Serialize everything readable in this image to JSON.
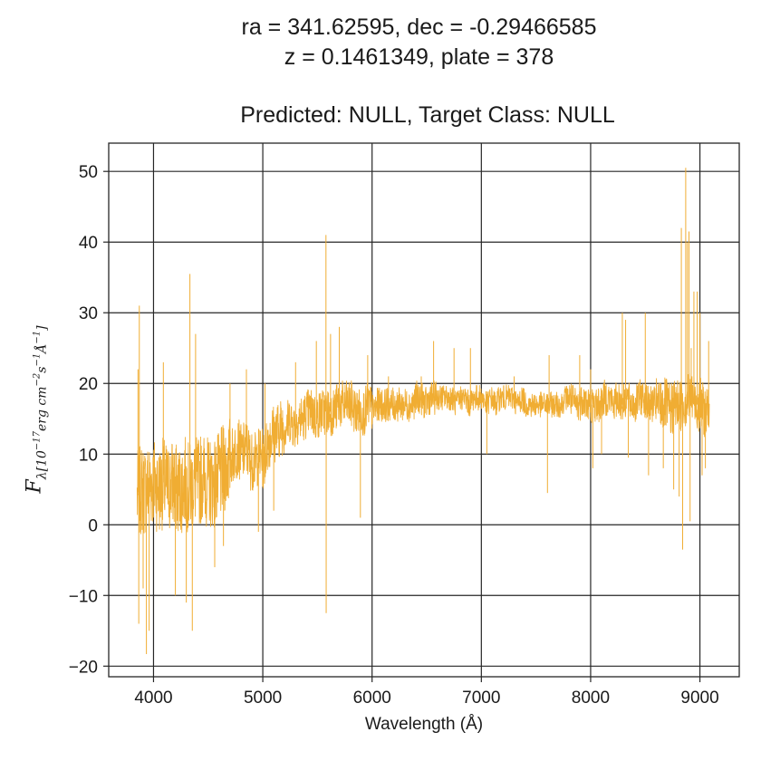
{
  "chart_data": {
    "type": "line",
    "title": "ra = 341.62595, dec = -0.29466585",
    "title_line2": "z = 0.1461349, plate = 378",
    "subtitle": "Predicted: NULL, Target Class: NULL",
    "xlabel": "Wavelength (Å)",
    "ylabel": {
      "symbol": "F",
      "subscript_lambda": "λ",
      "unit_open": "[10",
      "exp_17": "−17",
      "unit_erg": "erg cm",
      "exp_2": "−2",
      "unit_s": "s",
      "exp_1a": "−1",
      "unit_A": "Å",
      "exp_1b": "−1",
      "unit_close": "]"
    },
    "xlim": [
      3590,
      9360
    ],
    "ylim": [
      -21.5,
      54
    ],
    "xticks": [
      4000,
      5000,
      6000,
      7000,
      8000,
      9000
    ],
    "yticks": [
      -20,
      -10,
      0,
      10,
      20,
      30,
      40,
      50
    ],
    "grid": true,
    "line_color": "#f0ad33",
    "series": [
      {
        "x": [
          3850,
          3890,
          3930,
          3970,
          4010,
          4050,
          4090,
          4130,
          4170,
          4210,
          4250,
          4290,
          4330,
          4370,
          4410,
          4450,
          4490,
          4530,
          4570,
          4610,
          4650,
          4690,
          4730,
          4770,
          4810,
          4850,
          4890,
          4930,
          4970,
          5010,
          5050,
          5090,
          5130,
          5170,
          5210,
          5250,
          5290,
          5330,
          5370,
          5410,
          5450,
          5490,
          5530,
          5570,
          5610,
          5650,
          5690,
          5730,
          5770,
          5810,
          5850,
          5890,
          5930,
          5970,
          6010,
          6050,
          6090,
          6130,
          6170,
          6210,
          6250,
          6290,
          6330,
          6370,
          6410,
          6450,
          6490,
          6530,
          6570,
          6610,
          6650,
          6690,
          6730,
          6770,
          6810,
          6850,
          6890,
          6930,
          6970,
          7010,
          7050,
          7090,
          7130,
          7170,
          7210,
          7250,
          7290,
          7330,
          7370,
          7410,
          7450,
          7490,
          7530,
          7570,
          7610,
          7650,
          7690,
          7730,
          7770,
          7810,
          7850,
          7890,
          7930,
          7970,
          8010,
          8050,
          8090,
          8130,
          8170,
          8210,
          8250,
          8290,
          8330,
          8370,
          8410,
          8450,
          8490,
          8530,
          8570,
          8610,
          8650,
          8690,
          8730,
          8770,
          8810,
          8850,
          8890,
          8930,
          8970,
          9010,
          9050,
          9090
        ],
        "y": [
          4,
          5,
          5,
          6,
          6,
          5,
          6,
          5,
          6,
          5,
          5,
          6,
          5,
          6,
          6,
          7,
          6,
          6,
          6,
          7,
          8,
          9,
          10,
          11,
          10,
          11,
          9,
          9,
          10,
          9,
          12,
          13,
          13,
          14,
          14,
          15,
          14,
          15,
          15,
          16,
          16,
          15,
          16,
          16,
          16,
          16,
          17,
          17,
          17,
          17,
          16,
          16,
          16,
          17,
          16,
          17,
          17,
          17,
          17,
          17,
          17,
          17,
          17,
          17,
          18,
          18,
          17,
          18,
          18,
          18,
          18,
          18,
          18,
          17,
          18,
          18,
          17,
          18,
          18,
          18,
          17,
          18,
          17,
          18,
          18,
          18,
          18,
          17,
          18,
          17,
          17,
          17,
          17,
          17,
          17,
          17,
          17,
          17,
          18,
          18,
          17,
          17,
          18,
          17,
          17,
          17,
          17,
          18,
          18,
          17,
          18,
          17,
          18,
          17,
          17,
          18,
          18,
          17,
          17,
          17,
          17,
          17,
          16,
          17,
          17,
          17,
          18,
          18,
          17,
          17,
          16,
          15
        ]
      }
    ],
    "spikes": [
      {
        "x": 3858,
        "y": 22
      },
      {
        "x": 3870,
        "y": 31
      },
      {
        "x": 3865,
        "y": -14
      },
      {
        "x": 3905,
        "y": -9
      },
      {
        "x": 3935,
        "y": -18.3
      },
      {
        "x": 3960,
        "y": -15
      },
      {
        "x": 4090,
        "y": 23
      },
      {
        "x": 4200,
        "y": -10
      },
      {
        "x": 4300,
        "y": -11
      },
      {
        "x": 4333,
        "y": 35.5
      },
      {
        "x": 4355,
        "y": -15
      },
      {
        "x": 4385,
        "y": 27
      },
      {
        "x": 4560,
        "y": -6
      },
      {
        "x": 4640,
        "y": -3
      },
      {
        "x": 4700,
        "y": 20
      },
      {
        "x": 4850,
        "y": 22
      },
      {
        "x": 4960,
        "y": -1
      },
      {
        "x": 5020,
        "y": 20
      },
      {
        "x": 5100,
        "y": 2
      },
      {
        "x": 5300,
        "y": 23
      },
      {
        "x": 5450,
        "y": 18
      },
      {
        "x": 5490,
        "y": 26
      },
      {
        "x": 5578,
        "y": 41
      },
      {
        "x": 5580,
        "y": -12.5
      },
      {
        "x": 5620,
        "y": 27
      },
      {
        "x": 5700,
        "y": 28
      },
      {
        "x": 5893,
        "y": 1
      },
      {
        "x": 5960,
        "y": 24
      },
      {
        "x": 6150,
        "y": 21
      },
      {
        "x": 6450,
        "y": 21
      },
      {
        "x": 6563,
        "y": 26
      },
      {
        "x": 6750,
        "y": 25
      },
      {
        "x": 6900,
        "y": 25
      },
      {
        "x": 7050,
        "y": 10
      },
      {
        "x": 7300,
        "y": 21
      },
      {
        "x": 7605,
        "y": 4.5
      },
      {
        "x": 7620,
        "y": 24
      },
      {
        "x": 7900,
        "y": 24
      },
      {
        "x": 8000,
        "y": 22
      },
      {
        "x": 8020,
        "y": 8
      },
      {
        "x": 8100,
        "y": 10
      },
      {
        "x": 8290,
        "y": 30
      },
      {
        "x": 8320,
        "y": 29
      },
      {
        "x": 8345,
        "y": 9.5
      },
      {
        "x": 8500,
        "y": 30
      },
      {
        "x": 8530,
        "y": 7
      },
      {
        "x": 8665,
        "y": 8
      },
      {
        "x": 8760,
        "y": 5
      },
      {
        "x": 8810,
        "y": 4
      },
      {
        "x": 8830,
        "y": 42
      },
      {
        "x": 8842,
        "y": -3.5
      },
      {
        "x": 8870,
        "y": 50.5
      },
      {
        "x": 8885,
        "y": 40
      },
      {
        "x": 8900,
        "y": 41.5
      },
      {
        "x": 8910,
        "y": 0.5
      },
      {
        "x": 8920,
        "y": 25
      },
      {
        "x": 8945,
        "y": 33
      },
      {
        "x": 8975,
        "y": 33
      },
      {
        "x": 9000,
        "y": 30
      },
      {
        "x": 9020,
        "y": 7
      },
      {
        "x": 9050,
        "y": 8
      },
      {
        "x": 9080,
        "y": 26
      }
    ]
  }
}
